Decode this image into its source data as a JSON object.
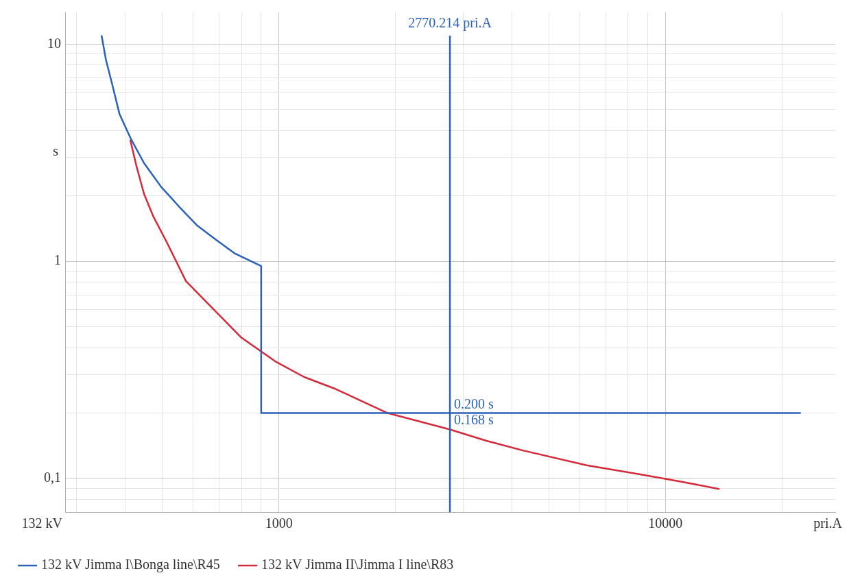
{
  "chart_data": {
    "type": "line",
    "xlabel": "pri.A",
    "ylabel": "s",
    "log": "xy",
    "grid": true,
    "legend": "bottom",
    "marker": "none",
    "line_style": "solid",
    "xlim": [
      280,
      27500
    ],
    "ylim": [
      0.07,
      14
    ],
    "xticks": [
      {
        "value": 300,
        "label": null
      },
      {
        "value": 400,
        "label": null
      },
      {
        "value": 500,
        "label": null
      },
      {
        "value": 600,
        "label": null
      },
      {
        "value": 700,
        "label": null
      },
      {
        "value": 800,
        "label": null
      },
      {
        "value": 900,
        "label": null
      },
      1000,
      {
        "value": 2000,
        "label": null
      },
      {
        "value": 3000,
        "label": null
      },
      {
        "value": 4000,
        "label": null
      },
      {
        "value": 5000,
        "label": null
      },
      {
        "value": 6000,
        "label": null
      },
      {
        "value": 7000,
        "label": null
      },
      {
        "value": 8000,
        "label": null
      },
      {
        "value": 9000,
        "label": null
      },
      10000,
      {
        "value": 20000,
        "label": null
      }
    ],
    "yticks": [
      {
        "value": 0.08,
        "label": null
      },
      {
        "value": 0.09,
        "label": null
      },
      {
        "value": 0.1,
        "label": "0,1"
      },
      {
        "value": 0.2,
        "label": null
      },
      {
        "value": 0.3,
        "label": null
      },
      {
        "value": 0.4,
        "label": null
      },
      {
        "value": 0.5,
        "label": null
      },
      {
        "value": 0.6,
        "label": null
      },
      {
        "value": 0.7,
        "label": null
      },
      {
        "value": 0.8,
        "label": null
      },
      {
        "value": 0.9,
        "label": null
      },
      1,
      {
        "value": 2,
        "label": null
      },
      {
        "value": 3,
        "label": null
      },
      {
        "value": 4,
        "label": null
      },
      {
        "value": 5,
        "label": null
      },
      {
        "value": 6,
        "label": null
      },
      {
        "value": 7,
        "label": null
      },
      {
        "value": 8,
        "label": null
      },
      {
        "value": 9,
        "label": null
      },
      10
    ],
    "series": [
      {
        "name": "132 kV Jimma I\\Bonga line\\R45",
        "color": "#2a62b8",
        "x": [
          348,
          357,
          370,
          387,
          413,
          448,
          496,
          556,
          615,
          682,
          767,
          900,
          900,
          22300
        ],
        "values": [
          10.9,
          8.46,
          6.6,
          4.77,
          3.7,
          2.83,
          2.2,
          1.76,
          1.46,
          1.27,
          1.09,
          0.95,
          0.2,
          0.2
        ]
      },
      {
        "name": "132 kV Jimma II\\Jimma I line\\R83",
        "color": "#d42a3a",
        "x": [
          413,
          428,
          448,
          474,
          511,
          575,
          800,
          984,
          1163,
          1403,
          1911,
          2770.214,
          3443,
          4318,
          6255,
          8710,
          11000,
          13740
        ],
        "values": [
          3.6,
          2.75,
          2.04,
          1.6,
          1.24,
          0.81,
          0.445,
          0.344,
          0.293,
          0.258,
          0.2,
          0.168,
          0.149,
          0.134,
          0.115,
          0.104,
          0.0966,
          0.0895
        ]
      }
    ],
    "ref_lines": [
      {
        "axis": "x",
        "value": 2770.214,
        "label": "2770.214 pri.A",
        "color": "#2a62b8"
      }
    ],
    "annotations": [
      "132 kV",
      {
        "text": "0.200 s",
        "x": 2770.214,
        "y": 0.2
      },
      {
        "text": "0.168 s",
        "x": 2770.214,
        "y": 0.168
      }
    ]
  }
}
